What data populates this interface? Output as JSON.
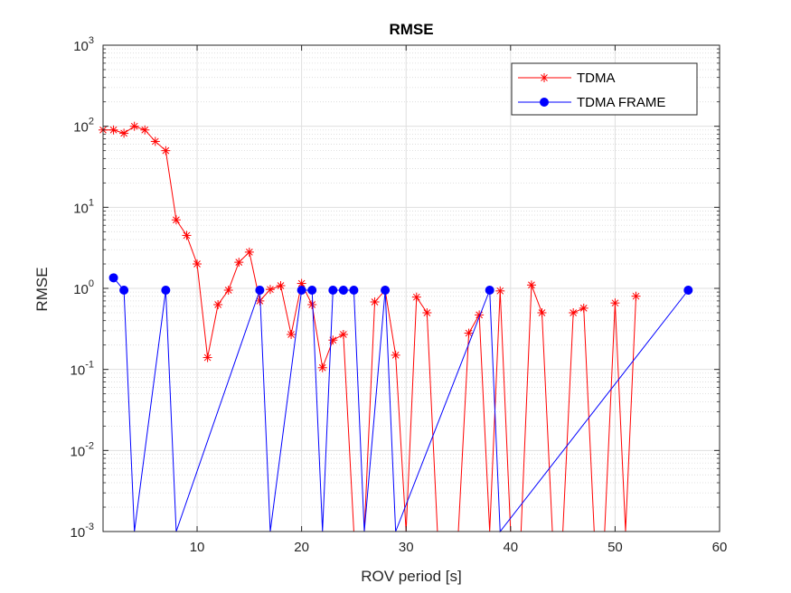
{
  "chart_data": {
    "type": "line",
    "title": "RMSE",
    "xlabel": "ROV period [s]",
    "ylabel": "RMSE",
    "xlim": [
      1,
      60
    ],
    "ylim": [
      0.001,
      1000
    ],
    "yscale": "log",
    "grid": true,
    "minor_grid": true,
    "legend_position": "top-right",
    "x_ticks": [
      10,
      20,
      30,
      40,
      50,
      60
    ],
    "y_ticks": [
      {
        "base": "10",
        "exp": "-3",
        "value": 0.001
      },
      {
        "base": "10",
        "exp": "-2",
        "value": 0.01
      },
      {
        "base": "10",
        "exp": "-1",
        "value": 0.1
      },
      {
        "base": "10",
        "exp": "0",
        "value": 1
      },
      {
        "base": "10",
        "exp": "1",
        "value": 10
      },
      {
        "base": "10",
        "exp": "2",
        "value": 100
      },
      {
        "base": "10",
        "exp": "3",
        "value": 1000
      }
    ],
    "series": [
      {
        "name": "TDMA",
        "color": "#ff0000",
        "marker": "asterisk",
        "points": [
          [
            1,
            90
          ],
          [
            2,
            90
          ],
          [
            3,
            82
          ],
          [
            4,
            100
          ],
          [
            5,
            90
          ],
          [
            6,
            65
          ],
          [
            7,
            50
          ],
          [
            8,
            7
          ],
          [
            9,
            4.5
          ],
          [
            10,
            2
          ],
          [
            11,
            0.14
          ],
          [
            12,
            0.63
          ],
          [
            13,
            0.95
          ],
          [
            14,
            2.1
          ],
          [
            15,
            2.8
          ],
          [
            16,
            0.7
          ],
          [
            17,
            0.97
          ],
          [
            18,
            1.08
          ],
          [
            19,
            0.27
          ],
          [
            20,
            1.15
          ],
          [
            21,
            0.63
          ],
          [
            22,
            0.105
          ],
          [
            23,
            0.23
          ],
          [
            24,
            0.27
          ],
          [
            25,
            null
          ],
          [
            26,
            null
          ],
          [
            27,
            0.68
          ],
          [
            28,
            0.95
          ],
          [
            29,
            0.15
          ],
          [
            30,
            null
          ],
          [
            31,
            0.78
          ],
          [
            32,
            0.5
          ],
          [
            33,
            null
          ],
          [
            34,
            null
          ],
          [
            35,
            null
          ],
          [
            36,
            0.28
          ],
          [
            37,
            0.47
          ],
          [
            38,
            null
          ],
          [
            39,
            0.93
          ],
          [
            40,
            null
          ],
          [
            41,
            null
          ],
          [
            42,
            1.1
          ],
          [
            43,
            0.5
          ],
          [
            44,
            null
          ],
          [
            45,
            null
          ],
          [
            46,
            0.5
          ],
          [
            47,
            0.57
          ],
          [
            48,
            null
          ],
          [
            49,
            null
          ],
          [
            50,
            0.66
          ],
          [
            51,
            null
          ],
          [
            52,
            0.8
          ]
        ]
      },
      {
        "name": "TDMA FRAME",
        "color": "#0000ff",
        "marker": "circle",
        "points": [
          [
            2,
            1.35
          ],
          [
            3,
            0.95
          ],
          [
            4,
            null
          ],
          [
            7,
            0.95
          ],
          [
            8,
            null
          ],
          [
            16,
            0.95
          ],
          [
            17,
            null
          ],
          [
            20,
            0.95
          ],
          [
            21,
            0.95
          ],
          [
            22,
            null
          ],
          [
            23,
            0.95
          ],
          [
            24,
            0.95
          ],
          [
            25,
            0.95
          ],
          [
            26,
            null
          ],
          [
            28,
            0.95
          ],
          [
            29,
            null
          ],
          [
            38,
            0.95
          ],
          [
            39,
            null
          ],
          [
            57,
            0.95
          ]
        ]
      }
    ]
  }
}
